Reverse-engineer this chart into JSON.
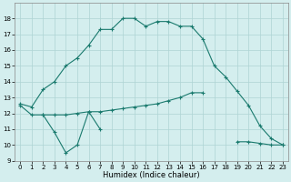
{
  "xlabel": "Humidex (Indice chaleur)",
  "x_values": [
    0,
    1,
    2,
    3,
    4,
    5,
    6,
    7,
    8,
    9,
    10,
    11,
    12,
    13,
    14,
    15,
    16,
    17,
    18,
    19,
    20,
    21,
    22,
    23
  ],
  "line_arc": [
    12.6,
    12.4,
    13.5,
    14.0,
    15.0,
    15.5,
    16.3,
    17.3,
    17.3,
    18.0,
    18.0,
    17.5,
    17.8,
    17.8,
    17.5,
    17.5,
    16.7,
    15.0,
    14.3,
    13.4,
    12.5,
    11.2,
    10.4,
    10.0
  ],
  "line_mid": [
    null,
    null,
    11.9,
    11.9,
    11.9,
    12.0,
    12.1,
    12.1,
    12.2,
    12.3,
    12.4,
    12.5,
    12.6,
    12.8,
    13.0,
    13.3,
    13.3,
    null,
    null,
    10.2,
    10.2,
    10.1,
    10.0,
    10.0
  ],
  "line_dip": [
    12.5,
    11.9,
    11.9,
    10.8,
    9.5,
    10.0,
    12.1,
    11.0,
    null,
    null,
    null,
    null,
    null,
    null,
    null,
    null,
    null,
    null,
    null,
    null,
    null,
    null,
    null,
    null
  ],
  "ylim": [
    9,
    19
  ],
  "xlim_min": -0.5,
  "xlim_max": 23.5,
  "yticks": [
    9,
    10,
    11,
    12,
    13,
    14,
    15,
    16,
    17,
    18
  ],
  "xticks": [
    0,
    1,
    2,
    3,
    4,
    5,
    6,
    7,
    8,
    9,
    10,
    11,
    12,
    13,
    14,
    15,
    16,
    17,
    18,
    19,
    20,
    21,
    22,
    23
  ],
  "line_color": "#1a7a6e",
  "bg_color": "#d4eeee",
  "grid_color": "#aed4d4"
}
